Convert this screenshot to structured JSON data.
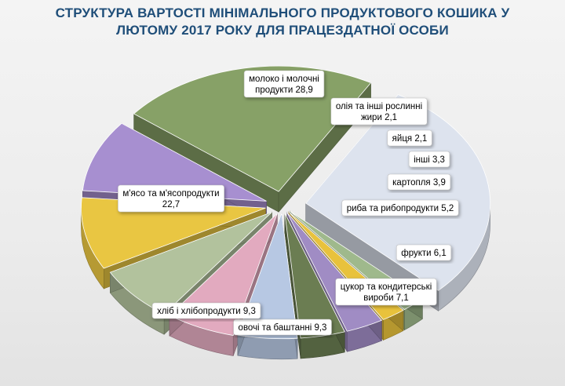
{
  "title_line1": "СТРУКТУРА ВАРТОСТІ МІНІМАЛЬНОГО  ПРОДУКТОВОГО  КОШИКА У",
  "title_line2": "ЛЮТОМУ 2017  РОКУ ДЛЯ ПРАЦЕЗДАТНОЇ ОСОБИ",
  "chart_data": {
    "type": "pie",
    "exploded": true,
    "three_d": true,
    "slices": [
      {
        "name": "молоко і молочні продукти",
        "value": 28.9,
        "label_lines": [
          "молоко і молочні",
          "продукти 28,9"
        ],
        "color": "#dde3ee"
      },
      {
        "name": "олія та інші рослинні жири",
        "value": 2.1,
        "label_lines": [
          "олія та інші рослинні",
          "жири 2,1"
        ],
        "color": "#9fb98c"
      },
      {
        "name": "яйця",
        "value": 2.1,
        "label_lines": [
          "яйця 2,1"
        ],
        "color": "#e8c23c"
      },
      {
        "name": "інші",
        "value": 3.3,
        "label_lines": [
          "інші 3,3"
        ],
        "color": "#a08cc4"
      },
      {
        "name": "картопля",
        "value": 3.9,
        "label_lines": [
          "картопля  3,9"
        ],
        "color": "#6b7d52"
      },
      {
        "name": "риба та рибопродукти",
        "value": 5.2,
        "label_lines": [
          "риба та рибопродукти 5,2"
        ],
        "color": "#b7c8e3"
      },
      {
        "name": "фрукти",
        "value": 6.1,
        "label_lines": [
          "фрукти 6,1"
        ],
        "color": "#e2aabf"
      },
      {
        "name": "цукор та кондитерські вироби",
        "value": 7.1,
        "label_lines": [
          "цукор та кондитерські",
          "вироби 7,1"
        ],
        "color": "#b2c29d"
      },
      {
        "name": "овочі та баштанні",
        "value": 9.3,
        "label_lines": [
          "овочі та баштанні 9,3"
        ],
        "color": "#e9c642"
      },
      {
        "name": "хліб і хлібопродукти",
        "value": 9.3,
        "label_lines": [
          "хліб і хлібопродукти 9,3"
        ],
        "color": "#a78fd0"
      },
      {
        "name": "м'ясо та м'ясопродукти",
        "value": 22.7,
        "label_lines": [
          "м'ясо та м'ясопродукти",
          "22,7"
        ],
        "color": "#87a167"
      }
    ]
  }
}
